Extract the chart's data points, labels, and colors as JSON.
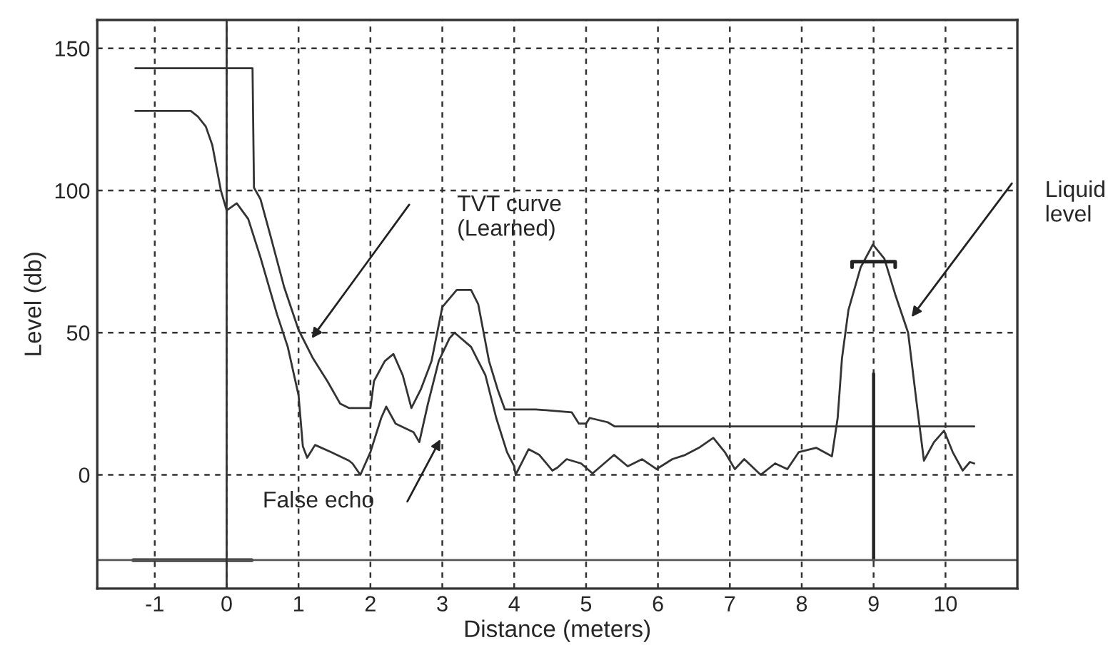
{
  "chart_data": {
    "type": "line",
    "xlabel": "Distance (meters)",
    "ylabel": "Level (db)",
    "xlim": [
      -1.8,
      11
    ],
    "ylim": [
      -40,
      160
    ],
    "xticks": [
      -1,
      0,
      1,
      2,
      3,
      4,
      5,
      6,
      7,
      8,
      9,
      10
    ],
    "yticks": [
      0,
      50,
      100,
      150
    ],
    "grid": true,
    "line_style": "solid",
    "series": [
      {
        "color": "#333333",
        "x": [
          -1.27,
          0.36,
          0.37,
          0.38,
          0.47,
          0.6,
          0.8,
          1.0,
          1.2,
          1.4,
          1.58,
          1.7,
          2.0,
          2.05,
          2.2,
          2.32,
          2.45,
          2.57,
          2.7,
          2.85,
          3.0,
          3.2,
          3.4,
          3.5,
          3.65,
          3.77,
          3.87,
          4.3,
          4.8,
          4.85,
          4.9,
          5.0,
          5.05,
          5.3,
          5.4,
          10.4
        ],
        "values": [
          143,
          143,
          122,
          101,
          97,
          85,
          66,
          51,
          41,
          33,
          25,
          23.5,
          23.5,
          33,
          40,
          42.5,
          35,
          23.5,
          30,
          40,
          59,
          65,
          65,
          60,
          40,
          30,
          23,
          23,
          22,
          20,
          18,
          18,
          20,
          18.5,
          17,
          17
        ]
      },
      {
        "color": "#333333",
        "x": [
          -1.27,
          -0.5,
          -0.4,
          -0.29,
          -0.2,
          -0.08,
          0.0,
          0.14,
          0.3,
          0.47,
          0.7,
          0.85,
          1.0,
          1.06,
          1.12,
          1.23,
          1.45,
          1.7,
          1.75,
          1.86,
          2.0,
          2.15,
          2.22,
          2.35,
          2.6,
          2.68,
          2.8,
          2.95,
          3.1,
          3.17,
          3.4,
          3.6,
          3.75,
          3.9,
          4.0,
          4.02,
          4.1,
          4.2,
          4.35,
          4.4,
          4.53,
          4.6,
          4.73,
          4.93,
          5.09,
          5.39,
          5.58,
          5.78,
          5.98,
          6.2,
          6.38,
          6.57,
          6.77,
          6.93,
          7.07,
          7.2,
          7.43,
          7.63,
          7.8,
          7.96,
          8.2,
          8.42,
          8.5,
          8.56,
          8.65,
          8.82,
          8.99,
          9.15,
          9.3,
          9.48,
          9.6,
          9.7,
          9.84,
          9.98,
          10.1,
          10.24,
          10.34,
          10.4
        ],
        "values": [
          128,
          128,
          126,
          122.5,
          116,
          100,
          93,
          95.5,
          90,
          76.5,
          56.5,
          45,
          28,
          10,
          6,
          10.5,
          8,
          5,
          4,
          0,
          8,
          20,
          24,
          18,
          15,
          11.5,
          25,
          40,
          48,
          50,
          45,
          35,
          20,
          8,
          3,
          0,
          4,
          9,
          7,
          5.5,
          1.5,
          2.5,
          5.5,
          4,
          0.5,
          7,
          3,
          5.5,
          2,
          5.5,
          7,
          9.5,
          13,
          8,
          2,
          5.5,
          0,
          4,
          2,
          8,
          9.5,
          6.5,
          20,
          41,
          58,
          73,
          81,
          76,
          63.5,
          50,
          25,
          5,
          11.5,
          15.5,
          8,
          1.5,
          4.5,
          4
        ]
      },
      {
        "color": "#222222",
        "x": [
          9,
          9
        ],
        "values": [
          -30,
          35.5
        ]
      },
      {
        "color": "#222222",
        "x": [
          8.7,
          8.7,
          9.3,
          9.3
        ],
        "values": [
          73,
          75,
          75,
          73
        ]
      },
      {
        "color": "#222222",
        "x": [
          -1.3,
          0.35
        ],
        "values": [
          -30,
          -30
        ]
      },
      {
        "color": "#555555",
        "x": [
          -1.8,
          11
        ],
        "values": [
          -30,
          -30
        ]
      }
    ],
    "ref_lines": [
      {
        "axis": "x",
        "value": 0,
        "color": "#333333"
      }
    ],
    "annotations": [
      "TVT curve\n(Learned)",
      "False echo",
      "Liquid\nlevel"
    ]
  }
}
